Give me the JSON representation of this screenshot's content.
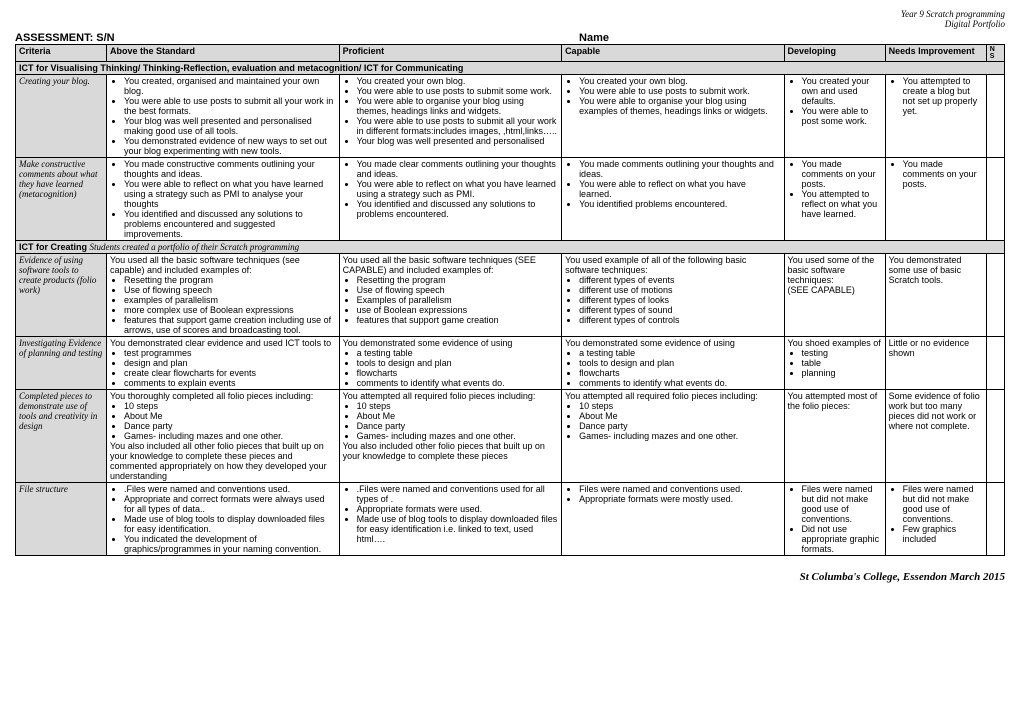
{
  "headerRight": [
    "Year 9 Scratch programming",
    "Digital Portfolio"
  ],
  "assessment": "ASSESSMENT: S/N",
  "name": "Name",
  "columns": [
    "Criteria",
    "Above the Standard",
    "Proficient",
    "Capable",
    "Developing",
    "Needs Improvement",
    "N S"
  ],
  "section1": "ICT for Visualising Thinking/ Thinking-Reflection, evaluation and metacognition/ ICT for Communicating",
  "section2": "ICT for Creating ",
  "section2intro": "Students created a portfolio of their Scratch programming",
  "rows": [
    {
      "criteria": "Creating your blog.",
      "a": [
        "You created, organised and maintained your own blog.",
        "You were able to use posts to submit all your work in the best formats.",
        "Your blog was well presented and personalised making good use of all tools.",
        "You demonstrated evidence of new ways to set out your blog experimenting with new tools."
      ],
      "p": [
        "You created your own blog.",
        "You were able to use posts to submit some work.",
        "You were able to organise your blog using themes, headings links and widgets.",
        "You were able to use posts to submit all your work in different formats:includes images, ,html,links…..",
        "Your blog was well presented and personalised"
      ],
      "c": [
        "You created your own blog.",
        "You were able to use posts to submit work.",
        "You were able to organise your blog using examples of themes, headings links or widgets."
      ],
      "d": [
        "You created your own and used defaults.",
        "You were able to post some work."
      ],
      "n": [
        "You attempted to create a blog but not set up properly yet."
      ]
    },
    {
      "criteria": "Make constructive comments about what they have learned (metacognition)",
      "a": [
        "You made constructive comments outlining your thoughts and ideas.",
        "You were able to reflect on what you have learned using a strategy such as PMI to analyse your thoughts",
        "You identified and discussed any solutions to problems encountered and suggested improvements."
      ],
      "p": [
        "You made clear comments outlining your thoughts and ideas.",
        "You were able to reflect on what you have learned using a strategy such as PMI.",
        "You identified and discussed any solutions to problems encountered."
      ],
      "c": [
        "You made comments outlining your thoughts and ideas.",
        "You were able to reflect on what you have learned.",
        "You identified problems encountered."
      ],
      "d": [
        "You made comments on your posts.",
        "You attempted to reflect on what you have learned."
      ],
      "n": [
        "You made comments on your posts."
      ]
    }
  ],
  "rows2": [
    {
      "criteria": "Evidence of using software tools to create products (folio work)",
      "aIntro": "You used all the basic software techniques (see capable) and included examples of:",
      "a": [
        "Resetting the program",
        "Use of flowing speech",
        "examples of parallelism",
        "more complex use of Boolean expressions",
        "features that support game creation including use of arrows, use of scores and broadcasting tool."
      ],
      "pIntro": "You used all the basic software techniques (SEE CAPABLE) and included examples of:",
      "p": [
        "Resetting the program",
        "Use of flowing speech",
        "Examples of parallelism",
        "use of Boolean expressions",
        "features that support game creation"
      ],
      "cIntro": "You used example of  all of the following basic software techniques:",
      "c": [
        "different types of events",
        "different use of motions",
        "different types of looks",
        "different types of sound",
        "different types of controls"
      ],
      "dText": "You used some of  the basic software techniques:\n(SEE CAPABLE)",
      "nText": "You demonstrated some use of basic Scratch tools."
    },
    {
      "criteria": "Investigating Evidence of planning and testing",
      "aIntro": "You demonstrated clear evidence and used ICT tools to",
      "a": [
        "test programmes",
        "design and plan",
        "create clear flowcharts for events",
        "comments to explain events"
      ],
      "pIntro": "You demonstrated some evidence of using",
      "p": [
        "a testing table",
        "tools to  design and plan",
        "flowcharts",
        "comments to identify what events do."
      ],
      "cIntro": "You demonstrated some evidence of using",
      "c": [
        "a testing table",
        "tools to  design and plan",
        "flowcharts",
        "comments to identify what events do."
      ],
      "dIntro": "You shoed  examples of",
      "d": [
        "testing",
        "table",
        "planning"
      ],
      "nText": "Little or no evidence shown"
    },
    {
      "criteria": "Completed pieces to demonstrate use of tools and creativity in design",
      "aIntro": "You thoroughly completed all folio pieces including:",
      "a": [
        "10 steps",
        "About Me",
        "Dance party",
        "Games- including mazes and one other."
      ],
      "aOutro": "You also included all other folio pieces that built up on your knowledge to complete these pieces and commented appropriately on how they developed your understanding",
      "pIntro": "You attempted all required folio pieces including:",
      "p": [
        "10 steps",
        "About Me",
        "Dance party",
        "Games- including mazes and one other."
      ],
      "pOutro": "You also included other folio pieces that built up on your knowledge to complete these pieces",
      "cIntro": "You attempted all required folio pieces including:",
      "c": [
        "10 steps",
        "About Me",
        "Dance party",
        "Games- including mazes and one other."
      ],
      "dText": "You attempted most of the folio pieces:",
      "nText": "Some evidence of folio work but too many pieces did not work or where not complete."
    },
    {
      "criteria": "File structure",
      "a": [
        ".Files were named and conventions used.",
        "Appropriate and correct  formats were always used for all types of data..",
        "Made use of blog tools to display downloaded files for easy identification.",
        "You indicated the development of graphics/programmes in your naming convention."
      ],
      "p": [
        ".Files were named and conventions used for all types of .",
        "Appropriate formats were used.",
        "Made use of blog tools to display downloaded files for easy identification i.e. linked to text, used html…."
      ],
      "c": [
        "Files were named and conventions used.",
        "Appropriate formats were mostly used."
      ],
      "d": [
        "Files were named but did not make good use of conventions.",
        "Did not use appropriate graphic formats."
      ],
      "n": [
        "Files were named but did not make good use of conventions.",
        "Few graphics included"
      ]
    }
  ],
  "footer": "St Columba's College, Essendon  March 2015"
}
